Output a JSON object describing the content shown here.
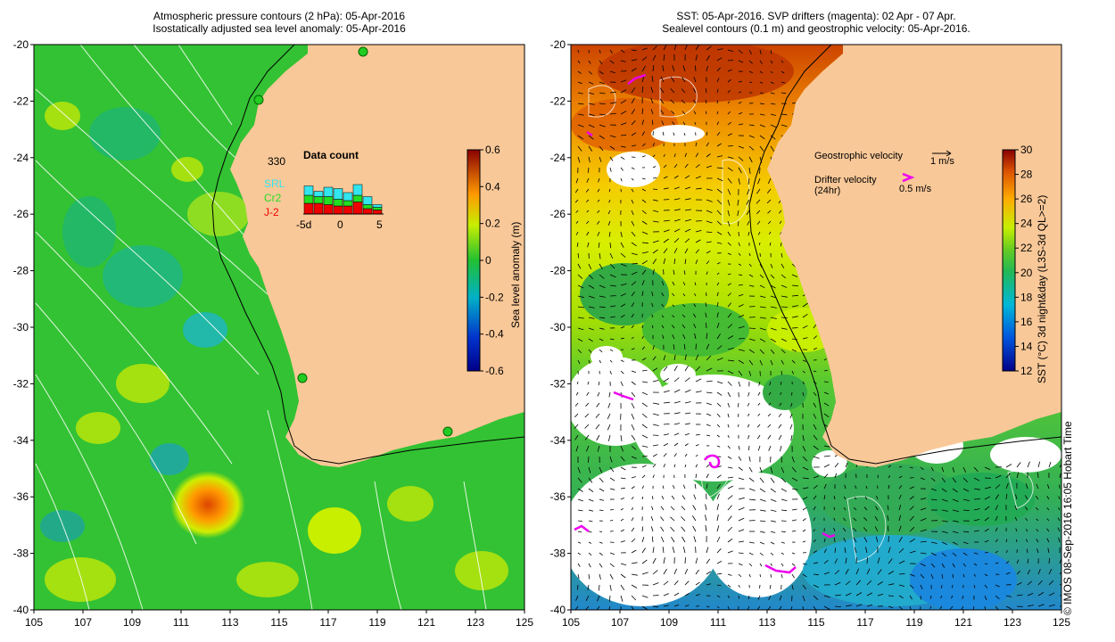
{
  "left_panel": {
    "title_line1": "Atmospheric pressure contours (2 hPa): 05-Apr-2016",
    "title_line2": "Isostatically adjusted sea level anomaly: 05-Apr-2016",
    "x_ticks": [
      "105",
      "107",
      "109",
      "111",
      "113",
      "115",
      "117",
      "119",
      "121",
      "123",
      "125"
    ],
    "y_ticks": [
      "-20",
      "-22",
      "-24",
      "-26",
      "-28",
      "-30",
      "-32",
      "-34",
      "-36",
      "-38",
      "-40"
    ],
    "colorbar": {
      "label": "Sea level anomaly (m)",
      "ticks": [
        "0.6",
        "0.4",
        "0.2",
        "0",
        "-0.2",
        "-0.4",
        "-0.6"
      ]
    },
    "inset": {
      "count": "330",
      "title": "Data count",
      "legend": [
        {
          "name": "SRL",
          "color": "#33e5ee"
        },
        {
          "name": "Cr2",
          "color": "#22dd22"
        },
        {
          "name": "J-2",
          "color": "#ee0000"
        }
      ],
      "x_ticks": [
        "-5d",
        "0",
        "5"
      ]
    }
  },
  "right_panel": {
    "title_line1": "SST: 05-Apr-2016. SVP drifters (magenta): 02 Apr - 07 Apr.",
    "title_line2": "Sealevel contours (0.1 m) and geostrophic velocity: 05-Apr-2016.",
    "x_ticks": [
      "105",
      "107",
      "109",
      "111",
      "113",
      "115",
      "117",
      "119",
      "121",
      "123",
      "125"
    ],
    "y_ticks": [
      "-20",
      "-22",
      "-24",
      "-26",
      "-28",
      "-30",
      "-32",
      "-34",
      "-36",
      "-38",
      "-40"
    ],
    "colorbar": {
      "label": "SST (°C) 3d night&day (L3S-3d QL>=2)",
      "ticks": [
        "30",
        "28",
        "26",
        "24",
        "22",
        "20",
        "18",
        "16",
        "14",
        "12"
      ]
    },
    "legend": {
      "geo_label": "Geostrophic velocity",
      "geo_scale": "1 m/s",
      "drifter_label_1": "Drifter velocity",
      "drifter_label_2": "(24hr)",
      "drifter_scale": "0.5 m/s"
    }
  },
  "credit": "© IMOS 08-Sep-2016 16:05 Hobart Time",
  "colors": {
    "land": "#f9c898",
    "sla_green": "#33c233",
    "sst_white": "#ffffff",
    "drifter": "#ee00ee"
  }
}
